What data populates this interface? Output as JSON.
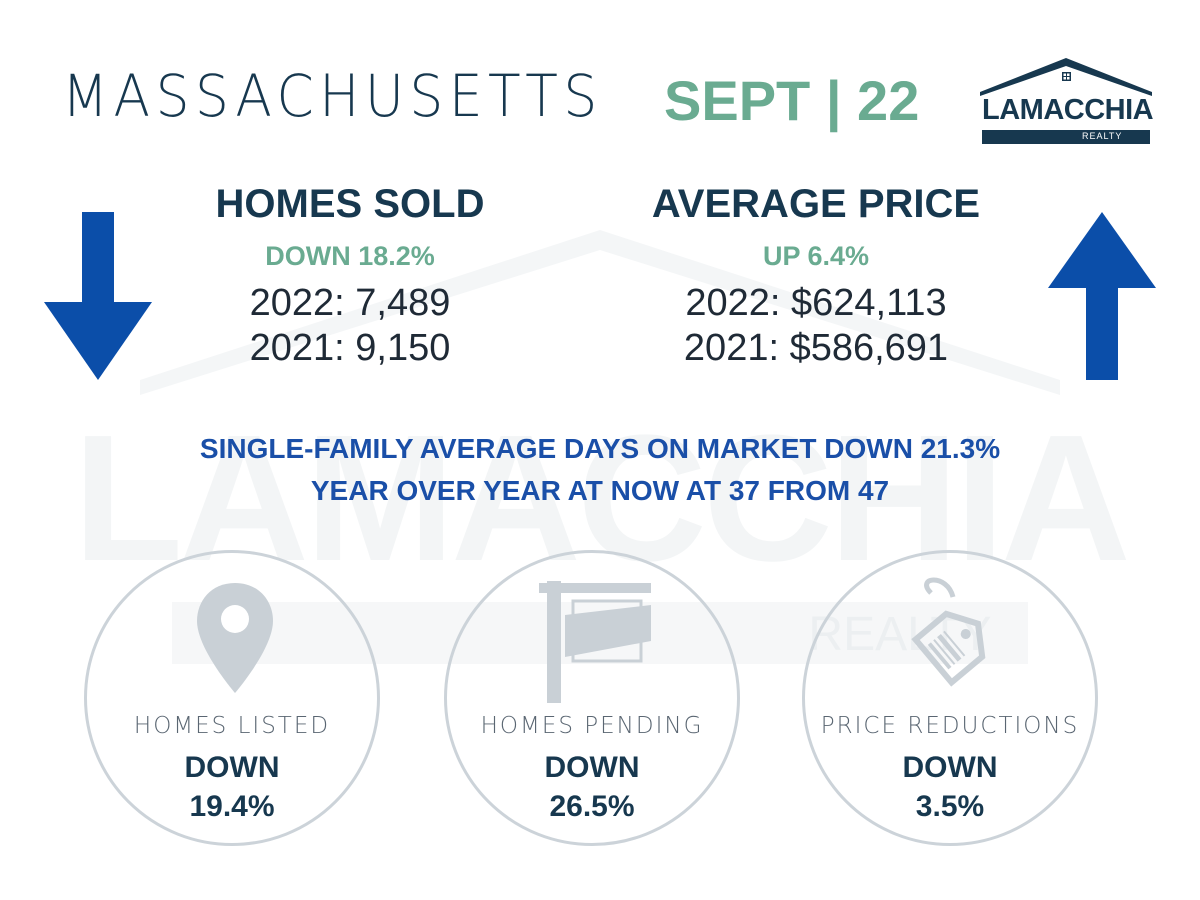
{
  "header": {
    "state": "MASSACHUSETTS",
    "period": "SEPT | 22"
  },
  "logo": {
    "name": "LAMACCHIA",
    "sub": "REALTY"
  },
  "homes_sold": {
    "title": "HOMES SOLD",
    "change": "DOWN 18.2%",
    "line_2022": "2022: 7,489",
    "line_2021": "2021: 9,150",
    "arrow": "arrow-down-icon"
  },
  "average_price": {
    "title": "AVERAGE PRICE",
    "change": "UP 6.4%",
    "line_2022": "2022: $624,113",
    "line_2021": "2021: $586,691",
    "arrow": "arrow-up-icon"
  },
  "days_on_market": {
    "line1": "SINGLE-FAMILY AVERAGE DAYS ON MARKET DOWN 21.3%",
    "line2": "YEAR OVER YEAR AT NOW AT 37 FROM 47"
  },
  "metrics": [
    {
      "icon": "map-pin-icon",
      "label": "HOMES LISTED",
      "direction": "DOWN",
      "percent": "19.4%"
    },
    {
      "icon": "for-sale-sign-icon",
      "label": "HOMES PENDING",
      "direction": "DOWN",
      "percent": "26.5%"
    },
    {
      "icon": "price-tag-icon",
      "label": "PRICE REDUCTIONS",
      "direction": "DOWN",
      "percent": "3.5%"
    }
  ],
  "colors": {
    "navy": "#17384f",
    "green": "#6aab91",
    "blue": "#0b4ea9",
    "banner_blue": "#1a4fa8",
    "circle_border": "#ccd3d9"
  }
}
